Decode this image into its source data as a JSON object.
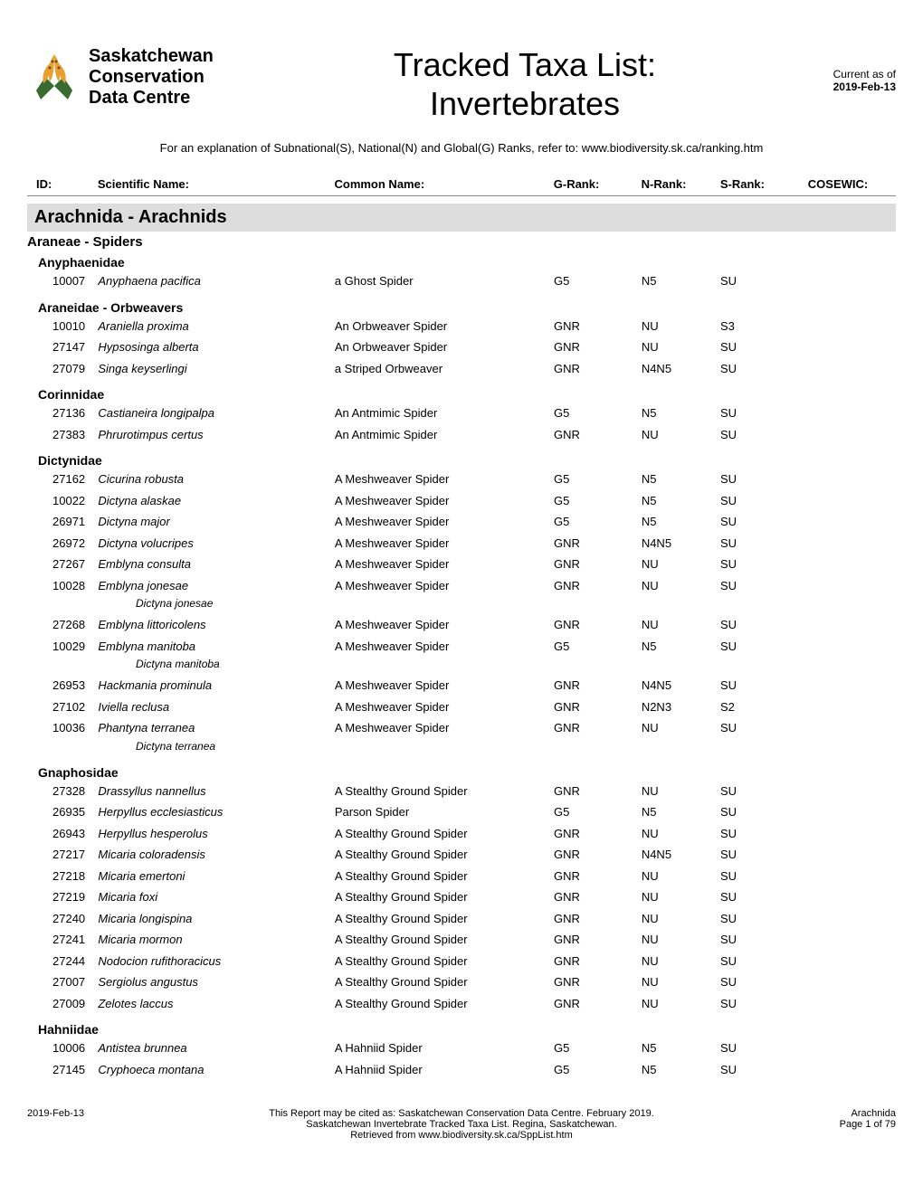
{
  "logo": {
    "line1": "Saskatchewan",
    "line2": "Conservation",
    "line3": "Data Centre"
  },
  "title_line1": "Tracked Taxa List:",
  "title_line2": "Invertebrates",
  "date_label": "Current as of",
  "date_value": "2019-Feb-13",
  "explanation": "For an explanation of Subnational(S), National(N) and Global(G) Ranks, refer to: www.biodiversity.sk.ca/ranking.htm",
  "columns": {
    "id": "ID:",
    "scientific": "Scientific Name:",
    "common": "Common Name:",
    "grank": "G-Rank:",
    "nrank": "N-Rank:",
    "srank": "S-Rank:",
    "cosewic": "COSEWIC:"
  },
  "class_header": "Arachnida - Arachnids",
  "order_header": "Araneae - Spiders",
  "families": [
    {
      "name": "Anyphaenidae",
      "species": [
        {
          "id": "10007",
          "sci": "Anyphaena pacifica",
          "common": "a Ghost Spider",
          "g": "G5",
          "n": "N5",
          "s": "SU",
          "cosewic": ""
        }
      ]
    },
    {
      "name": "Araneidae - Orbweavers",
      "species": [
        {
          "id": "10010",
          "sci": "Araniella proxima",
          "common": "An Orbweaver Spider",
          "g": "GNR",
          "n": "NU",
          "s": "S3",
          "cosewic": ""
        },
        {
          "id": "27147",
          "sci": "Hypsosinga alberta",
          "common": "An Orbweaver Spider",
          "g": "GNR",
          "n": "NU",
          "s": "SU",
          "cosewic": ""
        },
        {
          "id": "27079",
          "sci": "Singa keyserlingi",
          "common": "a Striped Orbweaver",
          "g": "GNR",
          "n": "N4N5",
          "s": "SU",
          "cosewic": ""
        }
      ]
    },
    {
      "name": "Corinnidae",
      "species": [
        {
          "id": "27136",
          "sci": "Castianeira longipalpa",
          "common": "An Antmimic Spider",
          "g": "G5",
          "n": "N5",
          "s": "SU",
          "cosewic": ""
        },
        {
          "id": "27383",
          "sci": "Phrurotimpus certus",
          "common": "An Antmimic Spider",
          "g": "GNR",
          "n": "NU",
          "s": "SU",
          "cosewic": ""
        }
      ]
    },
    {
      "name": "Dictynidae",
      "species": [
        {
          "id": "27162",
          "sci": "Cicurina robusta",
          "common": "A Meshweaver Spider",
          "g": "G5",
          "n": "N5",
          "s": "SU",
          "cosewic": ""
        },
        {
          "id": "10022",
          "sci": "Dictyna alaskae",
          "common": "A Meshweaver Spider",
          "g": "G5",
          "n": "N5",
          "s": "SU",
          "cosewic": ""
        },
        {
          "id": "26971",
          "sci": "Dictyna major",
          "common": "A Meshweaver Spider",
          "g": "G5",
          "n": "N5",
          "s": "SU",
          "cosewic": ""
        },
        {
          "id": "26972",
          "sci": "Dictyna volucripes",
          "common": "A Meshweaver Spider",
          "g": "GNR",
          "n": "N4N5",
          "s": "SU",
          "cosewic": ""
        },
        {
          "id": "27267",
          "sci": "Emblyna consulta",
          "common": "A Meshweaver Spider",
          "g": "GNR",
          "n": "NU",
          "s": "SU",
          "cosewic": ""
        },
        {
          "id": "10028",
          "sci": "Emblyna jonesae",
          "common": "A Meshweaver Spider",
          "g": "GNR",
          "n": "NU",
          "s": "SU",
          "cosewic": "",
          "synonym": "Dictyna jonesae"
        },
        {
          "id": "27268",
          "sci": "Emblyna littoricolens",
          "common": "A Meshweaver Spider",
          "g": "GNR",
          "n": "NU",
          "s": "SU",
          "cosewic": ""
        },
        {
          "id": "10029",
          "sci": "Emblyna manitoba",
          "common": "A Meshweaver Spider",
          "g": "G5",
          "n": "N5",
          "s": "SU",
          "cosewic": "",
          "synonym": "Dictyna manitoba"
        },
        {
          "id": "26953",
          "sci": "Hackmania prominula",
          "common": "A Meshweaver Spider",
          "g": "GNR",
          "n": "N4N5",
          "s": "SU",
          "cosewic": ""
        },
        {
          "id": "27102",
          "sci": "Iviella reclusa",
          "common": "A Meshweaver Spider",
          "g": "GNR",
          "n": "N2N3",
          "s": "S2",
          "cosewic": ""
        },
        {
          "id": "10036",
          "sci": "Phantyna terranea",
          "common": "A Meshweaver Spider",
          "g": "GNR",
          "n": "NU",
          "s": "SU",
          "cosewic": "",
          "synonym": "Dictyna terranea"
        }
      ]
    },
    {
      "name": "Gnaphosidae",
      "species": [
        {
          "id": "27328",
          "sci": "Drassyllus nannellus",
          "common": "A Stealthy Ground Spider",
          "g": "GNR",
          "n": "NU",
          "s": "SU",
          "cosewic": ""
        },
        {
          "id": "26935",
          "sci": "Herpyllus ecclesiasticus",
          "common": "Parson Spider",
          "g": "G5",
          "n": "N5",
          "s": "SU",
          "cosewic": ""
        },
        {
          "id": "26943",
          "sci": "Herpyllus hesperolus",
          "common": "A Stealthy Ground Spider",
          "g": "GNR",
          "n": "NU",
          "s": "SU",
          "cosewic": ""
        },
        {
          "id": "27217",
          "sci": "Micaria coloradensis",
          "common": "A Stealthy Ground Spider",
          "g": "GNR",
          "n": "N4N5",
          "s": "SU",
          "cosewic": ""
        },
        {
          "id": "27218",
          "sci": "Micaria emertoni",
          "common": "A Stealthy Ground Spider",
          "g": "GNR",
          "n": "NU",
          "s": "SU",
          "cosewic": ""
        },
        {
          "id": "27219",
          "sci": "Micaria foxi",
          "common": "A Stealthy Ground Spider",
          "g": "GNR",
          "n": "NU",
          "s": "SU",
          "cosewic": ""
        },
        {
          "id": "27240",
          "sci": "Micaria longispina",
          "common": "A Stealthy Ground Spider",
          "g": "GNR",
          "n": "NU",
          "s": "SU",
          "cosewic": ""
        },
        {
          "id": "27241",
          "sci": "Micaria mormon",
          "common": "A Stealthy Ground Spider",
          "g": "GNR",
          "n": "NU",
          "s": "SU",
          "cosewic": ""
        },
        {
          "id": "27244",
          "sci": "Nodocion rufithoracicus",
          "common": "A Stealthy Ground Spider",
          "g": "GNR",
          "n": "NU",
          "s": "SU",
          "cosewic": ""
        },
        {
          "id": "27007",
          "sci": "Sergiolus angustus",
          "common": "A Stealthy Ground Spider",
          "g": "GNR",
          "n": "NU",
          "s": "SU",
          "cosewic": ""
        },
        {
          "id": "27009",
          "sci": "Zelotes laccus",
          "common": "A Stealthy Ground Spider",
          "g": "GNR",
          "n": "NU",
          "s": "SU",
          "cosewic": ""
        }
      ]
    },
    {
      "name": "Hahniidae",
      "species": [
        {
          "id": "10006",
          "sci": "Antistea brunnea",
          "common": "A Hahniid Spider",
          "g": "G5",
          "n": "N5",
          "s": "SU",
          "cosewic": ""
        },
        {
          "id": "27145",
          "sci": "Cryphoeca montana",
          "common": "A Hahniid Spider",
          "g": "G5",
          "n": "N5",
          "s": "SU",
          "cosewic": ""
        }
      ]
    }
  ],
  "footer": {
    "left": "2019-Feb-13",
    "center_line1": "This Report may be cited as: Saskatchewan Conservation Data Centre. February 2019.",
    "center_line2": "Saskatchewan Invertebrate Tracked Taxa List. Regina, Saskatchewan.",
    "center_line3": "Retrieved from www.biodiversity.sk.ca/SppList.htm",
    "right_line1": "Arachnida",
    "right_line2": "Page 1 of 79"
  },
  "colors": {
    "class_bg": "#dddddd",
    "text": "#000000",
    "page_bg": "#ffffff",
    "lily_orange": "#e8a030",
    "lily_green": "#3a6b2e",
    "border_gray": "#888888"
  }
}
